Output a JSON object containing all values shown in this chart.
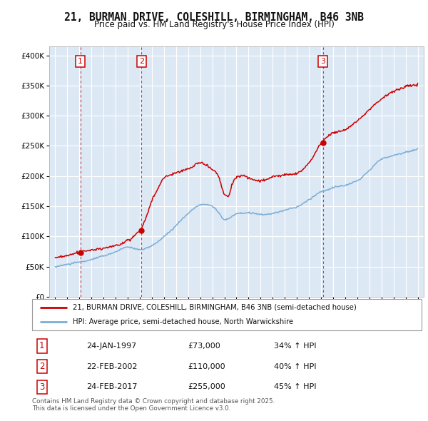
{
  "title": "21, BURMAN DRIVE, COLESHILL, BIRMINGHAM, B46 3NB",
  "subtitle": "Price paid vs. HM Land Registry's House Price Index (HPI)",
  "legend_line1": "21, BURMAN DRIVE, COLESHILL, BIRMINGHAM, B46 3NB (semi-detached house)",
  "legend_line2": "HPI: Average price, semi-detached house, North Warwickshire",
  "footer": "Contains HM Land Registry data © Crown copyright and database right 2025.\nThis data is licensed under the Open Government Licence v3.0.",
  "purchases": [
    {
      "label": "1",
      "date": "24-JAN-1997",
      "price": 73000,
      "hpi_pct": "34%"
    },
    {
      "label": "2",
      "date": "22-FEB-2002",
      "price": 110000,
      "hpi_pct": "40%"
    },
    {
      "label": "3",
      "date": "24-FEB-2017",
      "price": 255000,
      "hpi_pct": "45%"
    }
  ],
  "purchase_dates_num": [
    1997.07,
    2002.14,
    2017.15
  ],
  "purchase_prices": [
    73000,
    110000,
    255000
  ],
  "ylabel_ticks": [
    0,
    50000,
    100000,
    150000,
    200000,
    250000,
    300000,
    350000,
    400000
  ],
  "ylabel_labels": [
    "£0",
    "£50K",
    "£100K",
    "£150K",
    "£200K",
    "£250K",
    "£300K",
    "£350K",
    "£400K"
  ],
  "xlim": [
    1994.5,
    2025.5
  ],
  "ylim": [
    0,
    415000
  ],
  "red_color": "#cc0000",
  "blue_color": "#7aaed6",
  "bg_color": "#dde8f5",
  "grid_color": "#ffffff",
  "title_fontsize": 10.5,
  "subtitle_fontsize": 8.5
}
